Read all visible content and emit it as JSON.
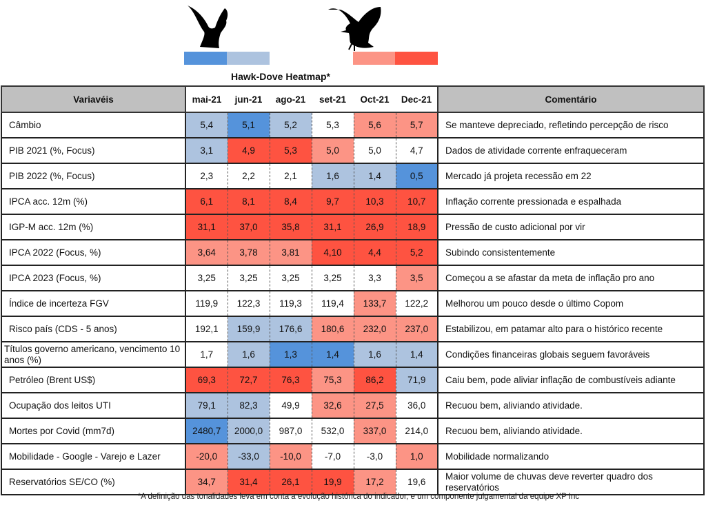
{
  "title": "Hawk-Dove Heatmap*",
  "colors": {
    "b2": "#5593db",
    "b1": "#adc3df",
    "w": "#ffffff",
    "r1": "#fc9485",
    "r2": "#fe5341"
  },
  "legend": {
    "dove_bars": [
      "#5593db",
      "#adc3df"
    ],
    "hawk_bars": [
      "#fc9485",
      "#fe5341"
    ],
    "dove_icon": "dove-icon",
    "hawk_icon": "hawk-icon"
  },
  "headers": {
    "variable": "Variavéis",
    "months": [
      "mai-21",
      "jun-21",
      "ago-21",
      "set-21",
      "Oct-21",
      "Dec-21"
    ],
    "comment": "Comentário"
  },
  "chart_data": {
    "type": "heatmap",
    "title": "Hawk-Dove Heatmap*",
    "columns": [
      "mai-21",
      "jun-21",
      "ago-21",
      "set-21",
      "Oct-21",
      "Dec-21"
    ],
    "rows": [
      {
        "label": "Câmbio",
        "values": [
          "5,4",
          "5,1",
          "5,2",
          "5,3",
          "5,6",
          "5,7"
        ],
        "tones": [
          "b1",
          "b2",
          "b1",
          "w",
          "r1",
          "r1"
        ],
        "comment": "Se manteve depreciado, refletindo percepção de risco"
      },
      {
        "label": "PIB 2021 (%, Focus)",
        "values": [
          "3,1",
          "4,9",
          "5,3",
          "5,0",
          "5,0",
          "4,7"
        ],
        "tones": [
          "b1",
          "r2",
          "r2",
          "r1",
          "w",
          "w"
        ],
        "comment": "Dados de atividade corrente enfraqueceram"
      },
      {
        "label": "PIB 2022 (%, Focus)",
        "values": [
          "2,3",
          "2,2",
          "2,1",
          "1,6",
          "1,4",
          "0,5"
        ],
        "tones": [
          "w",
          "w",
          "w",
          "b1",
          "b1",
          "b2"
        ],
        "comment": "Mercado já projeta recessão em 22"
      },
      {
        "label": "IPCA acc. 12m (%)",
        "values": [
          "6,1",
          "8,1",
          "8,4",
          "9,7",
          "10,3",
          "10,7"
        ],
        "tones": [
          "r2",
          "r2",
          "r2",
          "r2",
          "r2",
          "r2"
        ],
        "comment": "Inflação corrente pressionada e espalhada"
      },
      {
        "label": "IGP-M acc. 12m (%)",
        "values": [
          "31,1",
          "37,0",
          "35,8",
          "31,1",
          "26,9",
          "18,9"
        ],
        "tones": [
          "r2",
          "r2",
          "r2",
          "r2",
          "r2",
          "r2"
        ],
        "comment": "Pressão de custo adicional por vir"
      },
      {
        "label": "IPCA 2022 (Focus, %)",
        "values": [
          "3,64",
          "3,78",
          "3,81",
          "4,10",
          "4,4",
          "5,2"
        ],
        "tones": [
          "r1",
          "r1",
          "r1",
          "r2",
          "r2",
          "r2"
        ],
        "comment": "Subindo consistentemente"
      },
      {
        "label": "IPCA 2023 (Focus, %)",
        "values": [
          "3,25",
          "3,25",
          "3,25",
          "3,25",
          "3,3",
          "3,5"
        ],
        "tones": [
          "w",
          "w",
          "w",
          "w",
          "w",
          "r1"
        ],
        "comment": "Começou a se afastar da meta de inflação pro ano"
      },
      {
        "label": "Índice de incerteza FGV",
        "values": [
          "119,9",
          "122,3",
          "119,3",
          "119,4",
          "133,7",
          "122,2"
        ],
        "tones": [
          "w",
          "w",
          "w",
          "w",
          "r1",
          "w"
        ],
        "comment": "Melhorou um pouco desde o último Copom"
      },
      {
        "label": "Risco país (CDS - 5 anos)",
        "values": [
          "192,1",
          "159,9",
          "176,6",
          "180,6",
          "232,0",
          "237,0"
        ],
        "tones": [
          "w",
          "b1",
          "b1",
          "r1",
          "r1",
          "r1"
        ],
        "comment": "Estabilizou, em patamar alto para o histórico recente"
      },
      {
        "label": "Títulos governo americano, vencimento 10 anos (%)",
        "values": [
          "1,7",
          "1,6",
          "1,3",
          "1,4",
          "1,6",
          "1,4"
        ],
        "tones": [
          "w",
          "b1",
          "b2",
          "b2",
          "b1",
          "b1"
        ],
        "comment": "Condições financeiras globais seguem favoráveis"
      },
      {
        "label": "Petróleo (Brent US$)",
        "values": [
          "69,3",
          "72,7",
          "76,3",
          "75,3",
          "86,2",
          "71,9"
        ],
        "tones": [
          "r2",
          "r2",
          "r2",
          "r1",
          "r2",
          "b1"
        ],
        "comment": "Caiu bem, pode aliviar inflação de combustíveis adiante"
      },
      {
        "label": "Ocupação dos leitos UTI",
        "values": [
          "79,1",
          "82,3",
          "49,9",
          "32,6",
          "27,5",
          "36,0"
        ],
        "tones": [
          "b1",
          "b1",
          "w",
          "r1",
          "r1",
          "w"
        ],
        "comment": "Recuou bem, aliviando atividade."
      },
      {
        "label": "Mortes por Covid (mm7d)",
        "values": [
          "2480,7",
          "2000,0",
          "987,0",
          "532,0",
          "337,0",
          "214,0"
        ],
        "tones": [
          "b2",
          "b1",
          "w",
          "w",
          "r1",
          "w"
        ],
        "comment": "Recuou bem, aliviando atividade."
      },
      {
        "label": "Mobilidade - Google - Varejo e Lazer",
        "values": [
          "-20,0",
          "-33,0",
          "-10,0",
          "-7,0",
          "-3,0",
          "1,0"
        ],
        "tones": [
          "r1",
          "b1",
          "r1",
          "w",
          "w",
          "r1"
        ],
        "comment": "Mobilidade normalizando"
      },
      {
        "label": "Reservatórios SE/CO (%)",
        "values": [
          "34,7",
          "31,4",
          "26,1",
          "19,9",
          "17,2",
          "19,6"
        ],
        "tones": [
          "r1",
          "r2",
          "r2",
          "r2",
          "r1",
          "w"
        ],
        "comment": "Maior volume de chuvas deve reverter quadro dos reservatórios"
      }
    ]
  },
  "footnote": "*A definição das tonalidades leva em conta a evolução histórica do indicador, e um componente julgamental da equipe XP Inc"
}
